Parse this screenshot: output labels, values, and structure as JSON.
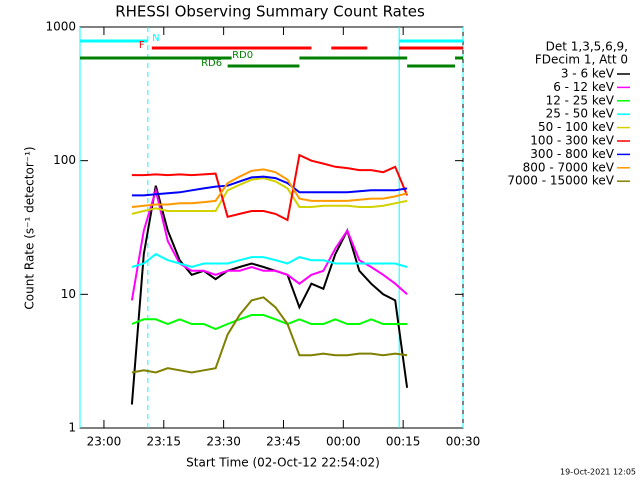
{
  "chart_data": {
    "type": "line",
    "title": "RHESSI Observing Summary Count Rates",
    "x_label": "Start Time (02-Oct-12 22:54:02)",
    "y_label": "Count Rate (s⁻¹ detector⁻¹)",
    "legend_title": [
      "Det 1,3,5,6,9,",
      "FDecim 1, Att 0"
    ],
    "footer": "19-Oct-2021 12:05",
    "log_y": true,
    "legend": "right",
    "xlim": [
      "22:54",
      "00:30"
    ],
    "xticks": [
      "23:00",
      "23:15",
      "23:30",
      "23:45",
      "00:00",
      "00:15",
      "00:30"
    ],
    "ylim": [
      1,
      1000
    ],
    "yticks": [
      1,
      10,
      100,
      1000
    ],
    "x": [
      "23:07",
      "23:10",
      "23:13",
      "23:16",
      "23:19",
      "23:22",
      "23:25",
      "23:28",
      "23:31",
      "23:34",
      "23:37",
      "23:40",
      "23:43",
      "23:46",
      "23:49",
      "23:52",
      "23:55",
      "23:58",
      "00:01",
      "00:04",
      "00:07",
      "00:10",
      "00:13",
      "00:16"
    ],
    "series": [
      {
        "name": "3 - 6 keV",
        "color": "#000000",
        "values": [
          1.5,
          20,
          65,
          30,
          18,
          14,
          15,
          13,
          15,
          16,
          17,
          16,
          15,
          14,
          8,
          12,
          11,
          20,
          30,
          15,
          12,
          10,
          9,
          2
        ]
      },
      {
        "name": "6 - 12 keV",
        "color": "#ff00ff",
        "values": [
          9,
          30,
          60,
          25,
          17,
          15,
          15,
          14,
          15,
          15,
          16,
          15,
          15,
          14,
          12,
          14,
          15,
          22,
          30,
          18,
          16,
          14,
          12,
          10
        ]
      },
      {
        "name": "12 - 25 keV",
        "color": "#00ff00",
        "values": [
          6,
          6.5,
          6.5,
          6,
          6.5,
          6,
          6,
          5.5,
          6,
          6.5,
          7,
          7,
          6.5,
          6,
          6.5,
          6,
          6,
          6.5,
          6,
          6,
          6.5,
          6,
          6,
          6
        ]
      },
      {
        "name": "25 - 50 keV",
        "color": "#00ffff",
        "values": [
          16,
          17,
          20,
          18,
          17,
          16,
          17,
          17,
          17,
          18,
          19,
          19,
          18,
          17,
          19,
          18,
          18,
          17,
          17,
          17,
          17,
          17,
          17,
          16
        ]
      },
      {
        "name": "50 - 100 keV",
        "color": "#d2d200",
        "values": [
          40,
          42,
          44,
          42,
          42,
          42,
          42,
          42,
          60,
          66,
          72,
          74,
          70,
          62,
          45,
          45,
          46,
          46,
          46,
          45,
          45,
          46,
          48,
          50
        ]
      },
      {
        "name": "100 - 300 keV",
        "color": "#ff0000",
        "values": [
          78,
          78,
          79,
          78,
          79,
          78,
          79,
          80,
          38,
          40,
          42,
          42,
          40,
          36,
          110,
          100,
          95,
          90,
          88,
          85,
          85,
          82,
          90,
          55
        ]
      },
      {
        "name": "300 - 800 keV",
        "color": "#0000ff",
        "values": [
          55,
          55,
          56,
          57,
          58,
          60,
          62,
          64,
          65,
          70,
          75,
          76,
          74,
          68,
          58,
          58,
          58,
          58,
          58,
          59,
          60,
          60,
          60,
          62
        ]
      },
      {
        "name": "800 - 7000 keV",
        "color": "#ff9900",
        "values": [
          45,
          46,
          47,
          47,
          48,
          48,
          49,
          50,
          68,
          76,
          84,
          86,
          82,
          72,
          52,
          50,
          50,
          50,
          50,
          51,
          52,
          52,
          54,
          57
        ]
      },
      {
        "name": "7000 - 15000 keV",
        "color": "#808000",
        "values": [
          2.6,
          2.7,
          2.6,
          2.8,
          2.7,
          2.6,
          2.7,
          2.8,
          5,
          7,
          9,
          9.5,
          8,
          6,
          3.5,
          3.5,
          3.6,
          3.5,
          3.5,
          3.6,
          3.6,
          3.5,
          3.6,
          3.5
        ]
      }
    ],
    "flags": [
      {
        "label": "N",
        "color": "#00ffff",
        "segments": [
          [
            "22:54",
            "23:11"
          ],
          [
            "00:14",
            "00:30"
          ]
        ]
      },
      {
        "label": "F",
        "color": "#ff0000",
        "segments": [
          [
            "23:12",
            "23:52"
          ],
          [
            "23:57",
            "00:06"
          ],
          [
            "00:14",
            "00:30"
          ]
        ]
      },
      {
        "label": "RD0",
        "color": "#008000",
        "segments": [
          [
            "22:54",
            "23:32"
          ],
          [
            "23:49",
            "00:16"
          ],
          [
            "00:28",
            "00:30"
          ]
        ]
      },
      {
        "label": "RD6",
        "color": "#008000",
        "segments": [
          [
            "23:31",
            "23:49"
          ],
          [
            "00:16",
            "00:28"
          ]
        ]
      }
    ]
  }
}
